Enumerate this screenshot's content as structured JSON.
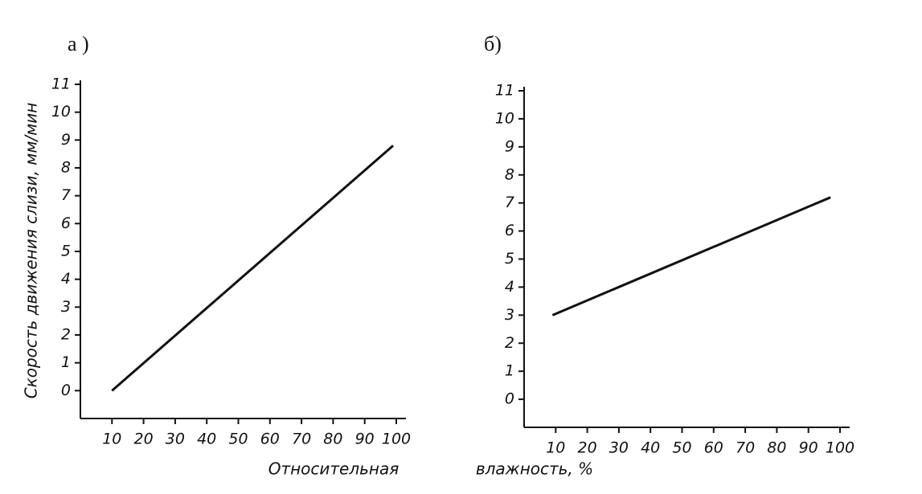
{
  "chart_data": [
    {
      "type": "line",
      "title": "а )",
      "y_label": "Скорость движения слизи, мм/мин",
      "x_label": "Относительная",
      "series": [
        {
          "x": [
            10,
            99
          ],
          "values": [
            0,
            8.8
          ],
          "color": "#111111"
        }
      ],
      "xlim": [
        0,
        100
      ],
      "xticks": [
        10,
        20,
        30,
        40,
        50,
        60,
        70,
        80,
        90,
        100
      ],
      "ylim": [
        -1,
        11
      ],
      "yticks": [
        0,
        1,
        2,
        3,
        4,
        5,
        6,
        7,
        8,
        9,
        10,
        11
      ]
    },
    {
      "type": "line",
      "title": "б)",
      "x_label": "влажность, %",
      "series": [
        {
          "x": [
            9,
            97
          ],
          "values": [
            3.0,
            7.2
          ],
          "color": "#111111"
        }
      ],
      "xlim": [
        0,
        100
      ],
      "xticks": [
        10,
        20,
        30,
        40,
        50,
        60,
        70,
        80,
        90,
        100
      ],
      "ylim": [
        -1,
        11
      ],
      "yticks": [
        0,
        1,
        2,
        3,
        4,
        5,
        6,
        7,
        8,
        9,
        10,
        11
      ]
    }
  ]
}
